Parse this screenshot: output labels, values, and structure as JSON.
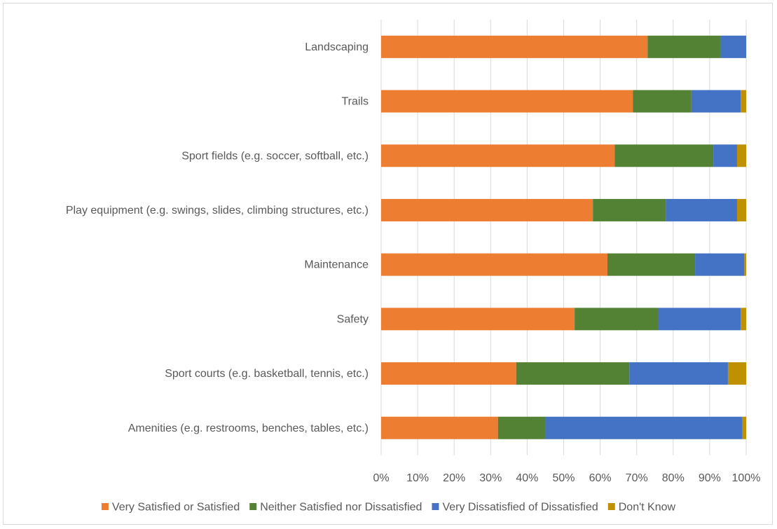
{
  "chart_data": {
    "type": "bar",
    "orientation": "horizontal",
    "stacked": "percent",
    "categories": [
      "Landscaping",
      "Trails",
      "Sport fields (e.g. soccer, softball, etc.)",
      "Play equipment (e.g. swings, slides, climbing structures, etc.)",
      "Maintenance",
      "Safety",
      "Sport courts (e.g. basketball, tennis, etc.)",
      "Amenities (e.g. restrooms, benches, tables, etc.)"
    ],
    "series": [
      {
        "name": "Very Satisfied or Satisfied",
        "color": "#ED7D31",
        "values": [
          73,
          69,
          64,
          58,
          62,
          53,
          37,
          32
        ]
      },
      {
        "name": "Neither Satisfied nor Dissatisfied",
        "color": "#548235",
        "values": [
          20,
          16,
          27,
          20,
          24,
          23,
          31,
          13
        ]
      },
      {
        "name": "Very Dissatisfied of Dissatisfied",
        "color": "#4472C4",
        "values": [
          7,
          13.5,
          6.5,
          19.5,
          13.5,
          22.5,
          27,
          54
        ]
      },
      {
        "name": "Don't Know",
        "color": "#BF9000",
        "values": [
          0,
          1.5,
          2.5,
          2.5,
          0.5,
          1.5,
          5,
          1
        ]
      }
    ],
    "x_ticks": [
      "0%",
      "10%",
      "20%",
      "30%",
      "40%",
      "50%",
      "60%",
      "70%",
      "80%",
      "90%",
      "100%"
    ],
    "xlim": [
      0,
      100
    ],
    "gridlines": "vertical",
    "legend_position": "bottom"
  }
}
